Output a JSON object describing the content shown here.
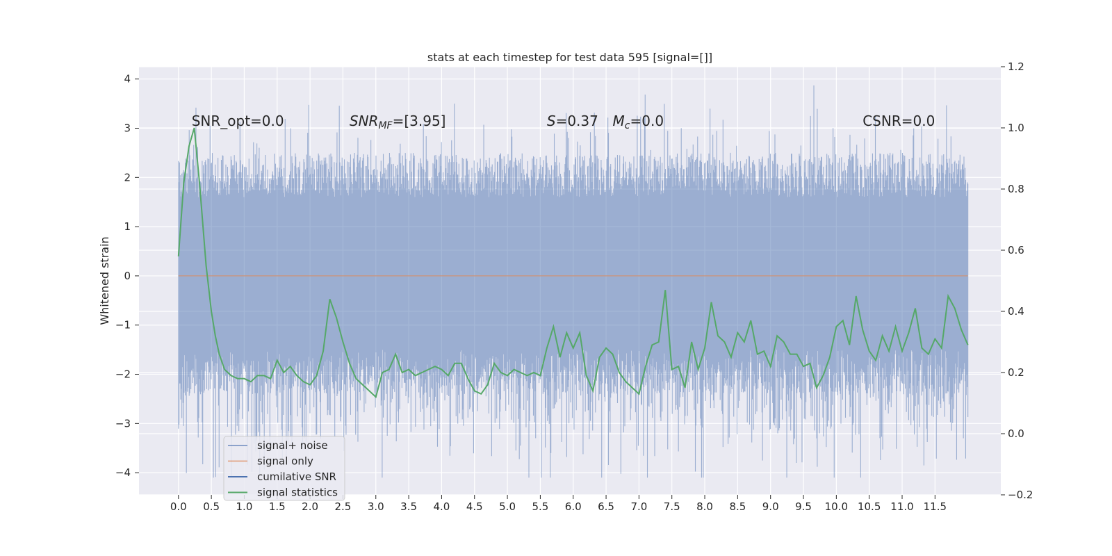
{
  "chart_data": {
    "type": "line",
    "title": "stats at each timestep for test data 595 [signal=[]]",
    "ylabel": "Whitened strain",
    "xlabel": "",
    "xlim": [
      -0.6,
      12.5
    ],
    "ylim": [
      -4.45,
      4.25
    ],
    "y2lim": [
      -0.2,
      1.2
    ],
    "grid": true,
    "legend_position": "lower-left",
    "x_ticks": [
      "0.0",
      "0.5",
      "1.0",
      "1.5",
      "2.0",
      "2.5",
      "3.0",
      "3.5",
      "4.0",
      "4.5",
      "5.0",
      "5.5",
      "6.0",
      "6.5",
      "7.0",
      "7.5",
      "8.0",
      "8.5",
      "9.0",
      "9.5",
      "10.0",
      "10.5",
      "11.0",
      "11.5"
    ],
    "y_ticks": [
      "4",
      "3",
      "2",
      "1",
      "0",
      "−1",
      "−2",
      "−3",
      "−4"
    ],
    "y2_ticks": [
      "1.2",
      "1.0",
      "0.8",
      "0.6",
      "0.4",
      "0.2",
      "0.0",
      "−0.2"
    ],
    "annotations": [
      {
        "text": "SNR_opt=0.0",
        "x": 0.2,
        "y": 3.05
      },
      {
        "text": "SNR_MF=[3.95]",
        "x": 2.6,
        "y": 3.05
      },
      {
        "text": "S=0.37",
        "x": 5.6,
        "y": 3.05
      },
      {
        "text": "M_c=0.0",
        "x": 6.6,
        "y": 3.05
      },
      {
        "text": "CSNR=0.0",
        "x": 10.4,
        "y": 3.05
      }
    ],
    "series": [
      {
        "name": "signal+ noise",
        "color": "#4c72b0",
        "x_range": [
          0.0,
          12.0
        ],
        "y_range": [
          -4.1,
          3.87
        ],
        "typical_range": [
          -2.0,
          2.2
        ]
      },
      {
        "name": "signal only",
        "color": "#dd8452",
        "x": [
          0.0,
          12.0
        ],
        "y": [
          0.0,
          0.0
        ]
      },
      {
        "name": "cumilative SNR",
        "color": "#4c72b0",
        "x": [],
        "y": []
      },
      {
        "name": "signal statistics",
        "color": "#55a868",
        "axis": "right",
        "x": [
          0.0,
          0.08,
          0.16,
          0.24,
          0.32,
          0.42,
          0.5,
          0.56,
          0.62,
          0.7,
          0.8,
          0.9,
          1.0,
          1.1,
          1.2,
          1.3,
          1.4,
          1.5,
          1.6,
          1.7,
          1.8,
          1.9,
          2.0,
          2.1,
          2.2,
          2.3,
          2.4,
          2.5,
          2.6,
          2.7,
          2.8,
          2.9,
          3.0,
          3.1,
          3.2,
          3.3,
          3.4,
          3.5,
          3.6,
          3.7,
          3.8,
          3.9,
          4.0,
          4.1,
          4.2,
          4.3,
          4.4,
          4.5,
          4.6,
          4.7,
          4.8,
          4.9,
          5.0,
          5.1,
          5.2,
          5.3,
          5.4,
          5.5,
          5.6,
          5.7,
          5.8,
          5.9,
          6.0,
          6.1,
          6.2,
          6.3,
          6.4,
          6.5,
          6.6,
          6.7,
          6.8,
          6.9,
          7.0,
          7.1,
          7.2,
          7.3,
          7.4,
          7.5,
          7.6,
          7.7,
          7.8,
          7.9,
          8.0,
          8.1,
          8.2,
          8.3,
          8.4,
          8.5,
          8.6,
          8.7,
          8.8,
          8.9,
          9.0,
          9.1,
          9.2,
          9.3,
          9.4,
          9.5,
          9.6,
          9.7,
          9.8,
          9.9,
          10.0,
          10.1,
          10.2,
          10.3,
          10.4,
          10.5,
          10.6,
          10.7,
          10.8,
          10.9,
          11.0,
          11.1,
          11.2,
          11.3,
          11.4,
          11.5,
          11.6,
          11.7,
          11.8,
          11.9,
          12.0
        ],
        "y": [
          0.58,
          0.82,
          0.94,
          1.0,
          0.82,
          0.55,
          0.4,
          0.32,
          0.26,
          0.21,
          0.19,
          0.18,
          0.18,
          0.17,
          0.19,
          0.19,
          0.18,
          0.24,
          0.2,
          0.22,
          0.19,
          0.17,
          0.16,
          0.19,
          0.27,
          0.44,
          0.38,
          0.3,
          0.23,
          0.18,
          0.16,
          0.14,
          0.12,
          0.2,
          0.21,
          0.26,
          0.2,
          0.21,
          0.19,
          0.2,
          0.21,
          0.22,
          0.21,
          0.19,
          0.23,
          0.23,
          0.18,
          0.14,
          0.13,
          0.16,
          0.23,
          0.2,
          0.19,
          0.21,
          0.2,
          0.19,
          0.2,
          0.19,
          0.28,
          0.35,
          0.25,
          0.33,
          0.28,
          0.33,
          0.19,
          0.14,
          0.25,
          0.28,
          0.26,
          0.2,
          0.17,
          0.15,
          0.13,
          0.22,
          0.29,
          0.3,
          0.47,
          0.21,
          0.22,
          0.15,
          0.3,
          0.21,
          0.28,
          0.43,
          0.32,
          0.3,
          0.25,
          0.33,
          0.3,
          0.37,
          0.26,
          0.27,
          0.22,
          0.32,
          0.3,
          0.26,
          0.26,
          0.22,
          0.23,
          0.15,
          0.19,
          0.25,
          0.35,
          0.37,
          0.29,
          0.45,
          0.34,
          0.27,
          0.24,
          0.32,
          0.27,
          0.35,
          0.27,
          0.33,
          0.41,
          0.28,
          0.26,
          0.31,
          0.28,
          0.45,
          0.41,
          0.34,
          0.29
        ]
      }
    ]
  }
}
